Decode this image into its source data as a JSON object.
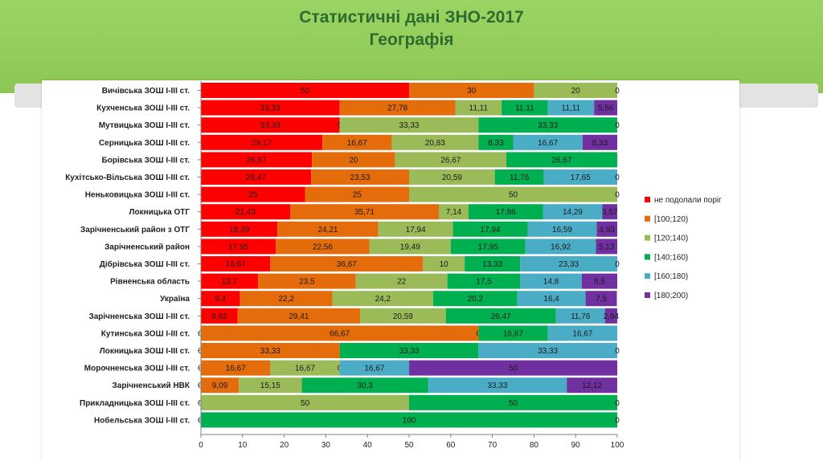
{
  "header": {
    "title": "Статистичні дані  ЗНО-2017",
    "subtitle": "Географія"
  },
  "colors": {
    "header_bg": "#8cc653",
    "title": "#2e6b2e",
    "series": [
      "#ff0000",
      "#e46c0a",
      "#9bbb59",
      "#00b050",
      "#4bacc6",
      "#7030a0"
    ]
  },
  "chart_data": {
    "type": "bar",
    "orientation": "horizontal",
    "stacked": true,
    "title": "",
    "xlabel": "",
    "ylabel": "",
    "xlim": [
      0,
      100
    ],
    "xticks": [
      "0",
      "10",
      "20",
      "30",
      "40",
      "50",
      "60",
      "70",
      "80",
      "90",
      "100"
    ],
    "grid": false,
    "legend_position": "right",
    "categories": [
      "Вичівська  ЗОШ І-ІІІ ст.",
      "Кухченська  ЗОШ І-ІІІ ст.",
      "Мутвицька  ЗОШ І-ІІІ ст.",
      "Серницька  ЗОШ І-ІІІ ст.",
      "Борівська  ЗОШ І-ІІІ ст.",
      "Кухітсько-Вільська  ЗОШ І-ІІІ ст.",
      "Неньковицька  ЗОШ І-ІІІ ст.",
      "Локницька  ОТГ",
      "Зарічненський район з ОТГ",
      "Зарічненський  район",
      "Дібрівська  ЗОШ І-ІІІ ст.",
      "Рівненська  область",
      "Україна",
      "Зарічненська  ЗОШ І-ІІІ ст.",
      "Кутинська  ЗОШ І-ІІІ ст.",
      "Локницька  ЗОШ І-ІІІ ст.",
      "Морочненська  ЗОШ І-ІІІ ст.",
      "Зарічненський  НВК",
      "Прикладницька  ЗОШ І-ІІІ ст.",
      "Нобельська  ЗОШ І-ІІІ ст."
    ],
    "series": [
      {
        "name": "не подолали поріг",
        "values": [
          50,
          33.33,
          33.33,
          29.17,
          26.67,
          26.47,
          25,
          21.43,
          18.39,
          17.95,
          16.67,
          13.7,
          9.4,
          8.82,
          0,
          0,
          0,
          0,
          0,
          0
        ]
      },
      {
        "name": "[100;120)",
        "values": [
          30,
          27.78,
          0,
          16.67,
          20,
          23.53,
          25,
          35.71,
          24.21,
          22.56,
          36.67,
          23.5,
          22.2,
          29.41,
          66.67,
          33.33,
          16.67,
          9.09,
          0,
          0
        ]
      },
      {
        "name": "[120;140)",
        "values": [
          20,
          11.11,
          33.33,
          20.83,
          26.67,
          20.59,
          50,
          7.14,
          17.94,
          19.49,
          10,
          22,
          24.2,
          20.59,
          0,
          0,
          16.67,
          15.15,
          50,
          0
        ]
      },
      {
        "name": "[140;160)",
        "values": [
          0,
          11.11,
          33.33,
          8.33,
          26.67,
          11.76,
          0,
          17.86,
          17.94,
          17.95,
          13.33,
          17.5,
          20.2,
          26.47,
          16.67,
          33.33,
          0,
          30.3,
          50,
          100
        ]
      },
      {
        "name": "[160;180)",
        "values": [
          0,
          11.11,
          0,
          16.67,
          0,
          17.65,
          0,
          14.29,
          16.59,
          16.92,
          23.33,
          14.8,
          16.4,
          11.76,
          16.67,
          33.33,
          16.67,
          33.33,
          0,
          0
        ]
      },
      {
        "name": "[180;200)",
        "values": [
          0,
          5.56,
          0,
          8.33,
          0,
          0,
          0,
          3.57,
          4.93,
          5.13,
          0,
          8.5,
          7.5,
          2.94,
          0,
          0,
          50,
          12.12,
          0,
          0
        ]
      }
    ],
    "labels": [
      [
        "50",
        "30",
        "20",
        "",
        "",
        "0"
      ],
      [
        "33,33",
        "27,78",
        "11,11",
        "11,11",
        "11,11",
        "5,56"
      ],
      [
        "33,33",
        "0",
        "33,33",
        "33,33",
        "",
        "0"
      ],
      [
        "29,17",
        "16,67",
        "20,83",
        "8,33",
        "16,67",
        "8,33"
      ],
      [
        "26,67",
        "20",
        "26,67",
        "26,67",
        "",
        ""
      ],
      [
        "26,47",
        "23,53",
        "20,59",
        "11,76",
        "17,65",
        "0"
      ],
      [
        "25",
        "25",
        "50",
        "",
        "",
        "0"
      ],
      [
        "21,43",
        "35,71",
        "7,14",
        "17,86",
        "14,29",
        "3,57"
      ],
      [
        "18,39",
        "24,21",
        "17,94",
        "17,94",
        "16,59",
        "4,93"
      ],
      [
        "17,95",
        "22,56",
        "19,49",
        "17,95",
        "16,92",
        "5,13"
      ],
      [
        "16,67",
        "36,67",
        "10",
        "13,33",
        "23,33",
        "0"
      ],
      [
        "13,7",
        "23,5",
        "22",
        "17,5",
        "14,8",
        "8,5"
      ],
      [
        "9,4",
        "22,2",
        "24,2",
        "20,2",
        "16,4",
        "7,5"
      ],
      [
        "8,82",
        "29,41",
        "20,59",
        "26,47",
        "11,76",
        "2,94"
      ],
      [
        "0",
        "66,67",
        "0",
        "16,67",
        "16,67",
        ""
      ],
      [
        "0",
        "33,33",
        "",
        "33,33",
        "33,33",
        "0"
      ],
      [
        "0",
        "16,67",
        "16,67",
        "0",
        "16,67",
        "50"
      ],
      [
        "0",
        "9,09",
        "15,15",
        "30,3",
        "33,33",
        "12,12"
      ],
      [
        "0",
        "",
        "50",
        "50",
        "",
        "0"
      ],
      [
        "0",
        "",
        "",
        "100",
        "",
        "0"
      ]
    ]
  }
}
